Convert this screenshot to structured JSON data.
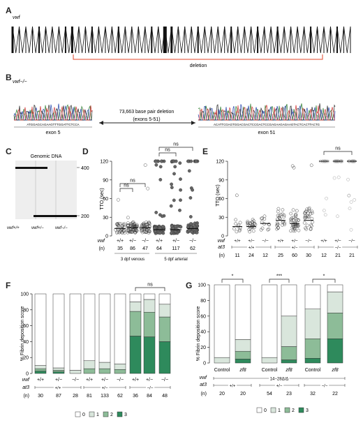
{
  "panels": {
    "A": {
      "letter": "A",
      "gene_label": "vwf",
      "deletion_label": "deletion",
      "exon_count": 52,
      "deletion_color": "#e0442a"
    },
    "B": {
      "letter": "B",
      "genotype_label": "vwf−/−",
      "left_sequence": "ATGGAGCAGAAGTTTGGATTCTCCA",
      "right_sequence": "ACATTCGAGTGGACGACTCCGACTCCGAGAAGAGAAGTACTCACTTACTG",
      "deletion_text_1": "73,663 base pair deletion",
      "deletion_text_2": "(exons 5-51)",
      "left_exon": "exon 5",
      "right_exon": "exon 51",
      "trace_colors": [
        "#2a7a2a",
        "#1f3fa8",
        "#222222",
        "#d03030"
      ]
    },
    "C": {
      "letter": "C",
      "title": "Genomic DNA",
      "marker_high": "400",
      "marker_low": "200",
      "lane_labels": [
        "vwf+/+",
        "vwf+/−",
        "vwf−/−"
      ]
    },
    "D": {
      "letter": "D",
      "ylabel": "TTO (sec)",
      "yticks": [
        "0",
        "30",
        "60",
        "90",
        "120"
      ],
      "row_label_vwf": "vwf",
      "row_label_n": "(n)",
      "genotypes": [
        "+/+",
        "+/−",
        "−/−",
        "+/+",
        "+/−",
        "−/−"
      ],
      "n_values": [
        "35",
        "86",
        "47",
        "64",
        "117",
        "62"
      ],
      "group_labels": [
        "3 dpf venous",
        "5 dpf arterial"
      ],
      "ns_label": "ns"
    },
    "E": {
      "letter": "E",
      "ylabel": "TTO (sec)",
      "yticks": [
        "0",
        "30",
        "60",
        "90",
        "120"
      ],
      "row_label_vwf": "vwf",
      "row_label_at3": "at3",
      "row_label_n": "(n)",
      "genotypes": [
        "+/+",
        "+/−",
        "−/−",
        "+/+",
        "+/−",
        "−/−",
        "+/+",
        "+/−",
        "−/−"
      ],
      "at3_groups": [
        "+/+",
        "+/−",
        "−/−"
      ],
      "n_values": [
        "11",
        "24",
        "12",
        "25",
        "60",
        "30",
        "12",
        "21",
        "21"
      ],
      "ns_label": "ns"
    },
    "F": {
      "letter": "F",
      "ylabel": "% Fibrin deposition score",
      "yticks": [
        "0",
        "20",
        "40",
        "60",
        "80",
        "100"
      ],
      "row_label_vwf": "vwf",
      "row_label_at3": "at3",
      "row_label_n": "(n)",
      "genotypes": [
        "+/+",
        "+/−",
        "−/−",
        "+/+",
        "+/−",
        "−/−",
        "+/+",
        "+/−",
        "−/−"
      ],
      "at3_groups": [
        "+/+",
        "+/−",
        "−/−"
      ],
      "n_values": [
        "30",
        "87",
        "28",
        "81",
        "133",
        "62",
        "36",
        "84",
        "48"
      ],
      "ns_label": "ns",
      "legend": [
        "0",
        "1",
        "2",
        "3"
      ]
    },
    "G": {
      "letter": "G",
      "ylabel": "% Fibrin deposition score",
      "yticks": [
        "0",
        "20",
        "40",
        "60",
        "80",
        "100"
      ],
      "row_label_vwf": "vwf",
      "row_label_at3": "at3",
      "row_label_n": "(n)",
      "vwf_group": "14−28Δ/Δ",
      "conditions": [
        "Control",
        "zf8",
        "Control",
        "zf8",
        "Control",
        "zf8"
      ],
      "at3_groups": [
        "+/+",
        "+/−",
        "−/−"
      ],
      "n_values": [
        "20",
        "20",
        "54",
        "23",
        "32",
        "22"
      ],
      "sig_labels": [
        "*",
        "***",
        "*"
      ],
      "legend": [
        "0",
        "1",
        "2",
        "3"
      ]
    }
  },
  "colors": {
    "score0": "#ffffff",
    "score1": "#d9e6dc",
    "score2": "#8dbc98",
    "score3": "#2e8a5c",
    "point_filled": "#666666"
  },
  "chart_data": [
    {
      "panel": "D",
      "type": "scatter",
      "ylabel": "TTO (sec)",
      "ylim": [
        0,
        120
      ],
      "categories": [
        "3 dpf venous +/+",
        "3 dpf venous +/−",
        "3 dpf venous −/−",
        "5 dpf arterial +/+",
        "5 dpf arterial +/−",
        "5 dpf arterial −/−"
      ],
      "n": [
        35,
        86,
        47,
        64,
        117,
        62
      ],
      "median": [
        12,
        13,
        13,
        10,
        10,
        12
      ]
    },
    {
      "panel": "E",
      "type": "scatter",
      "ylabel": "TTO (sec)",
      "ylim": [
        0,
        120
      ],
      "categories": [
        "at3+/+ vwf+/+",
        "at3+/+ vwf+/−",
        "at3+/+ vwf−/−",
        "at3+/− vwf+/+",
        "at3+/− vwf+/−",
        "at3+/− vwf−/−",
        "at3−/− vwf+/+",
        "at3−/− vwf+/−",
        "at3−/− vwf−/−"
      ],
      "n": [
        11,
        24,
        12,
        25,
        60,
        30,
        12,
        21,
        21
      ],
      "median": [
        15,
        15,
        20,
        25,
        20,
        25,
        120,
        120,
        120
      ]
    },
    {
      "panel": "F",
      "type": "bar",
      "stacked": true,
      "ylabel": "% Fibrin deposition score",
      "ylim": [
        0,
        100
      ],
      "categories": [
        "+/+",
        "+/−",
        "−/−",
        "+/+",
        "+/−",
        "−/−",
        "+/+",
        "+/−",
        "−/−"
      ],
      "series": [
        {
          "name": "3",
          "values": [
            3,
            2,
            0,
            0,
            0,
            0,
            47,
            46,
            40
          ]
        },
        {
          "name": "2",
          "values": [
            3,
            2,
            0,
            6,
            6,
            5,
            31,
            31,
            31
          ]
        },
        {
          "name": "1",
          "values": [
            4,
            3,
            4,
            10,
            8,
            7,
            12,
            16,
            16
          ]
        },
        {
          "name": "0",
          "values": [
            90,
            93,
            96,
            84,
            86,
            88,
            10,
            7,
            13
          ]
        }
      ]
    },
    {
      "panel": "G",
      "type": "bar",
      "stacked": true,
      "ylabel": "% Fibrin deposition score",
      "ylim": [
        0,
        100
      ],
      "categories": [
        "Control",
        "zf8",
        "Control",
        "zf8",
        "Control",
        "zf8"
      ],
      "series": [
        {
          "name": "3",
          "values": [
            0,
            5,
            0,
            4,
            6,
            31
          ]
        },
        {
          "name": "2",
          "values": [
            0,
            10,
            0,
            17,
            25,
            33
          ]
        },
        {
          "name": "1",
          "values": [
            7,
            15,
            7,
            39,
            38,
            27
          ]
        },
        {
          "name": "0",
          "values": [
            93,
            70,
            93,
            40,
            31,
            9
          ]
        }
      ]
    }
  ]
}
